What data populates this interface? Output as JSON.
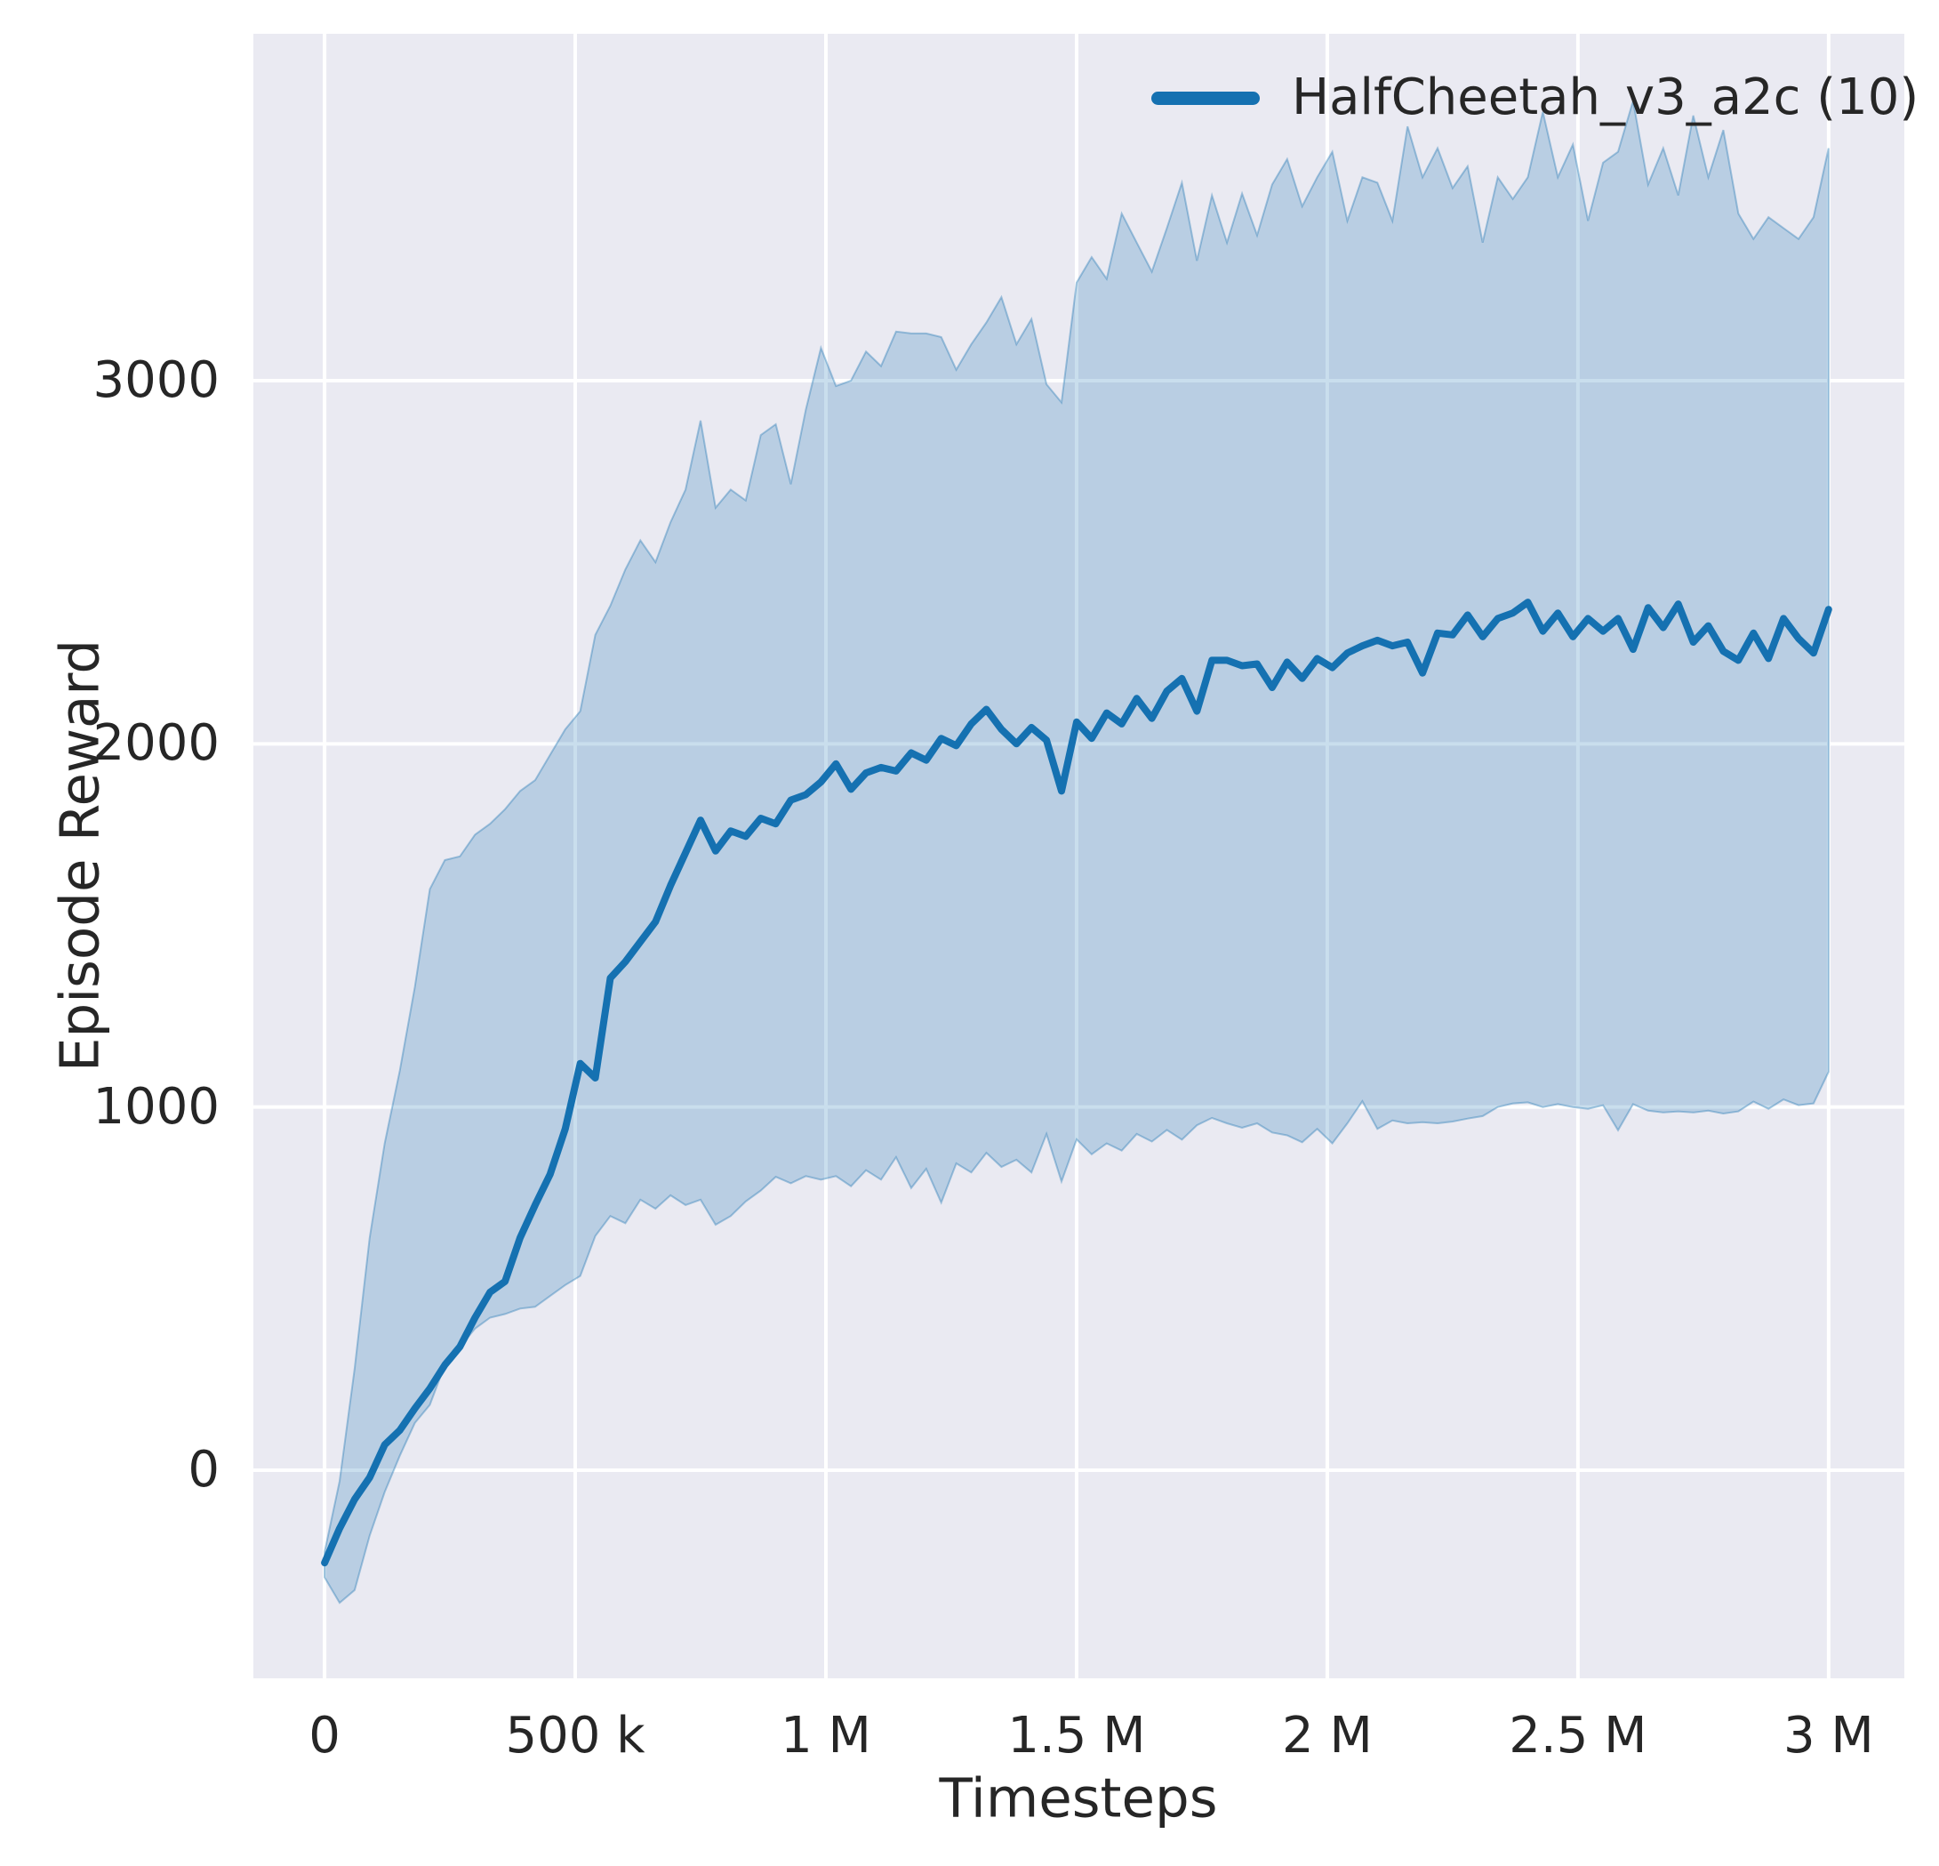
{
  "chart_data": {
    "type": "line",
    "title": "",
    "xlabel": "Timesteps",
    "ylabel": "Episode Reward",
    "xlim": [
      -142000,
      3151000
    ],
    "ylim": [
      -573,
      3955
    ],
    "grid": true,
    "legend_position": "upper right",
    "colors": {
      "background": "#eaeaf2",
      "grid": "#ffffff",
      "line": "#1571b1",
      "band": "#1f77b4",
      "band_alpha": 0.24,
      "band_edge_alpha": 0.38,
      "text": "#262626"
    },
    "x_ticks": [
      {
        "value": 0,
        "label": "0"
      },
      {
        "value": 500000,
        "label": "500 k"
      },
      {
        "value": 1000000,
        "label": "1 M"
      },
      {
        "value": 1500000,
        "label": "1.5 M"
      },
      {
        "value": 2000000,
        "label": "2 M"
      },
      {
        "value": 2500000,
        "label": "2.5 M"
      },
      {
        "value": 3000000,
        "label": "3 M"
      }
    ],
    "y_ticks": [
      {
        "value": 0,
        "label": "0"
      },
      {
        "value": 1000,
        "label": "1000"
      },
      {
        "value": 2000,
        "label": "2000"
      },
      {
        "value": 3000,
        "label": "3000"
      }
    ],
    "x": [
      0,
      30000,
      60000,
      90000,
      120000,
      150000,
      180000,
      210000,
      240000,
      270000,
      300000,
      330000,
      360000,
      390000,
      420000,
      450000,
      480000,
      510000,
      540000,
      570000,
      600000,
      630000,
      660000,
      690000,
      720000,
      750000,
      780000,
      810000,
      840000,
      870000,
      900000,
      930000,
      960000,
      990000,
      1020000,
      1050000,
      1080000,
      1110000,
      1140000,
      1170000,
      1200000,
      1230000,
      1260000,
      1290000,
      1320000,
      1350000,
      1380000,
      1410000,
      1440000,
      1470000,
      1500000,
      1530000,
      1560000,
      1590000,
      1620000,
      1650000,
      1680000,
      1710000,
      1740000,
      1770000,
      1800000,
      1830000,
      1860000,
      1890000,
      1920000,
      1950000,
      1980000,
      2010000,
      2040000,
      2070000,
      2100000,
      2130000,
      2160000,
      2190000,
      2220000,
      2250000,
      2280000,
      2310000,
      2340000,
      2370000,
      2400000,
      2430000,
      2460000,
      2490000,
      2520000,
      2550000,
      2580000,
      2610000,
      2640000,
      2670000,
      2700000,
      2730000,
      2760000,
      2790000,
      2820000,
      2850000,
      2880000,
      2910000,
      2940000,
      2970000,
      3000000
    ],
    "series": [
      {
        "name": "HalfCheetah_v3_a2c (10)",
        "mean": [
          -255,
          -160,
          -80,
          -20,
          70,
          110,
          170,
          225,
          290,
          340,
          420,
          490,
          520,
          640,
          730,
          815,
          940,
          1120,
          1080,
          1355,
          1400,
          1455,
          1510,
          1610,
          1700,
          1790,
          1705,
          1760,
          1745,
          1795,
          1780,
          1845,
          1860,
          1895,
          1945,
          1875,
          1920,
          1935,
          1925,
          1975,
          1955,
          2015,
          1995,
          2055,
          2095,
          2040,
          2000,
          2045,
          2010,
          1870,
          2060,
          2015,
          2085,
          2055,
          2125,
          2070,
          2145,
          2180,
          2090,
          2230,
          2230,
          2215,
          2220,
          2155,
          2225,
          2180,
          2235,
          2210,
          2250,
          2270,
          2285,
          2270,
          2280,
          2195,
          2305,
          2300,
          2355,
          2295,
          2345,
          2360,
          2390,
          2310,
          2360,
          2295,
          2345,
          2310,
          2345,
          2260,
          2375,
          2320,
          2385,
          2280,
          2325,
          2255,
          2230,
          2305,
          2235,
          2345,
          2290,
          2250,
          2370
        ],
        "band_lower": [
          -295,
          -365,
          -330,
          -180,
          -60,
          40,
          130,
          180,
          290,
          340,
          390,
          420,
          430,
          445,
          450,
          480,
          510,
          535,
          645,
          700,
          680,
          745,
          720,
          757,
          730,
          745,
          676,
          700,
          740,
          770,
          808,
          790,
          810,
          800,
          810,
          782,
          826,
          800,
          862,
          777,
          830,
          737,
          845,
          820,
          874,
          835,
          855,
          820,
          926,
          795,
          911,
          870,
          900,
          880,
          926,
          905,
          937,
          910,
          950,
          970,
          955,
          943,
          955,
          930,
          922,
          903,
          940,
          900,
          955,
          1016,
          940,
          963,
          955,
          958,
          955,
          960,
          968,
          975,
          1000,
          1010,
          1013,
          1000,
          1008,
          1000,
          995,
          1005,
          936,
          1008,
          990,
          985,
          988,
          985,
          990,
          982,
          988,
          1015,
          995,
          1021,
          1005,
          1010,
          1097
        ],
        "band_upper": [
          -225,
          -30,
          280,
          640,
          900,
          1100,
          1330,
          1600,
          1680,
          1690,
          1750,
          1780,
          1820,
          1870,
          1900,
          1970,
          2040,
          2090,
          2300,
          2380,
          2480,
          2560,
          2500,
          2610,
          2700,
          2890,
          2650,
          2700,
          2670,
          2850,
          2880,
          2715,
          2920,
          3090,
          2985,
          3000,
          3080,
          3040,
          3135,
          3130,
          3130,
          3120,
          3030,
          3100,
          3160,
          3230,
          3100,
          3170,
          2990,
          2940,
          3270,
          3340,
          3280,
          3460,
          3380,
          3300,
          3420,
          3545,
          3330,
          3510,
          3380,
          3515,
          3400,
          3540,
          3610,
          3480,
          3560,
          3630,
          3440,
          3560,
          3545,
          3440,
          3700,
          3560,
          3640,
          3530,
          3590,
          3380,
          3560,
          3500,
          3560,
          3740,
          3560,
          3650,
          3440,
          3600,
          3630,
          3770,
          3540,
          3640,
          3510,
          3730,
          3560,
          3690,
          3460,
          3390,
          3450,
          3420,
          3390,
          3450,
          3640
        ]
      }
    ]
  }
}
